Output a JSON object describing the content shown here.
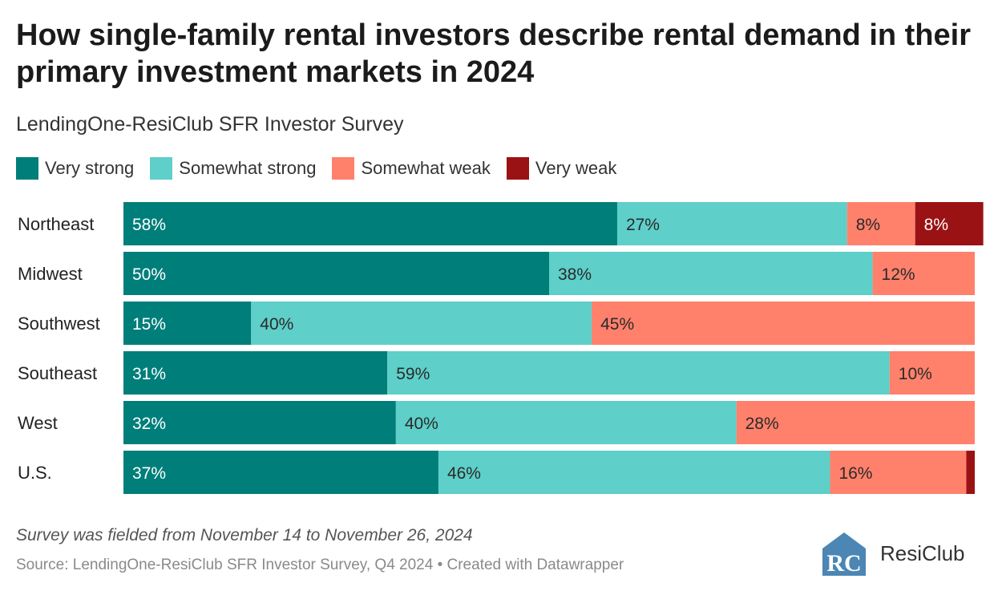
{
  "title": "How single-family rental investors describe rental demand in their primary investment markets in 2024",
  "subtitle": "LendingOne-ResiClub SFR Investor Survey",
  "notes": "Survey was fielded from November 14 to November 26, 2024",
  "source": "Source: LendingOne-ResiClub SFR Investor Survey, Q4 2024 • Created with Datawrapper",
  "logo": {
    "text": "ResiClub",
    "mark": "RC",
    "color": "#4b86b4"
  },
  "chart_data": {
    "type": "bar",
    "orientation": "horizontal",
    "stacked": true,
    "unit": "%",
    "categories": [
      "Northeast",
      "Midwest",
      "Southwest",
      "Southeast",
      "West",
      "U.S."
    ],
    "series": [
      {
        "name": "Very strong",
        "color": "#007e7a",
        "values": [
          58,
          50,
          15,
          31,
          32,
          37
        ],
        "labels": [
          "58%",
          "50%",
          "15%",
          "31%",
          "32%",
          "37%"
        ]
      },
      {
        "name": "Somewhat strong",
        "color": "#5ecfc9",
        "values": [
          27,
          38,
          40,
          59,
          40,
          46
        ],
        "labels": [
          "27%",
          "38%",
          "40%",
          "59%",
          "40%",
          "46%"
        ]
      },
      {
        "name": "Somewhat weak",
        "color": "#ff816c",
        "values": [
          8,
          12,
          45,
          10,
          28,
          16
        ],
        "labels": [
          "8%",
          "12%",
          "45%",
          "10%",
          "28%",
          "16%"
        ]
      },
      {
        "name": "Very weak",
        "color": "#9b1214",
        "values": [
          8,
          0,
          0,
          0,
          0,
          1
        ],
        "labels": [
          "8%",
          "",
          "",
          "",
          "",
          ""
        ]
      }
    ],
    "xlim": [
      0,
      100
    ],
    "legend": "top-left",
    "grid": false
  }
}
